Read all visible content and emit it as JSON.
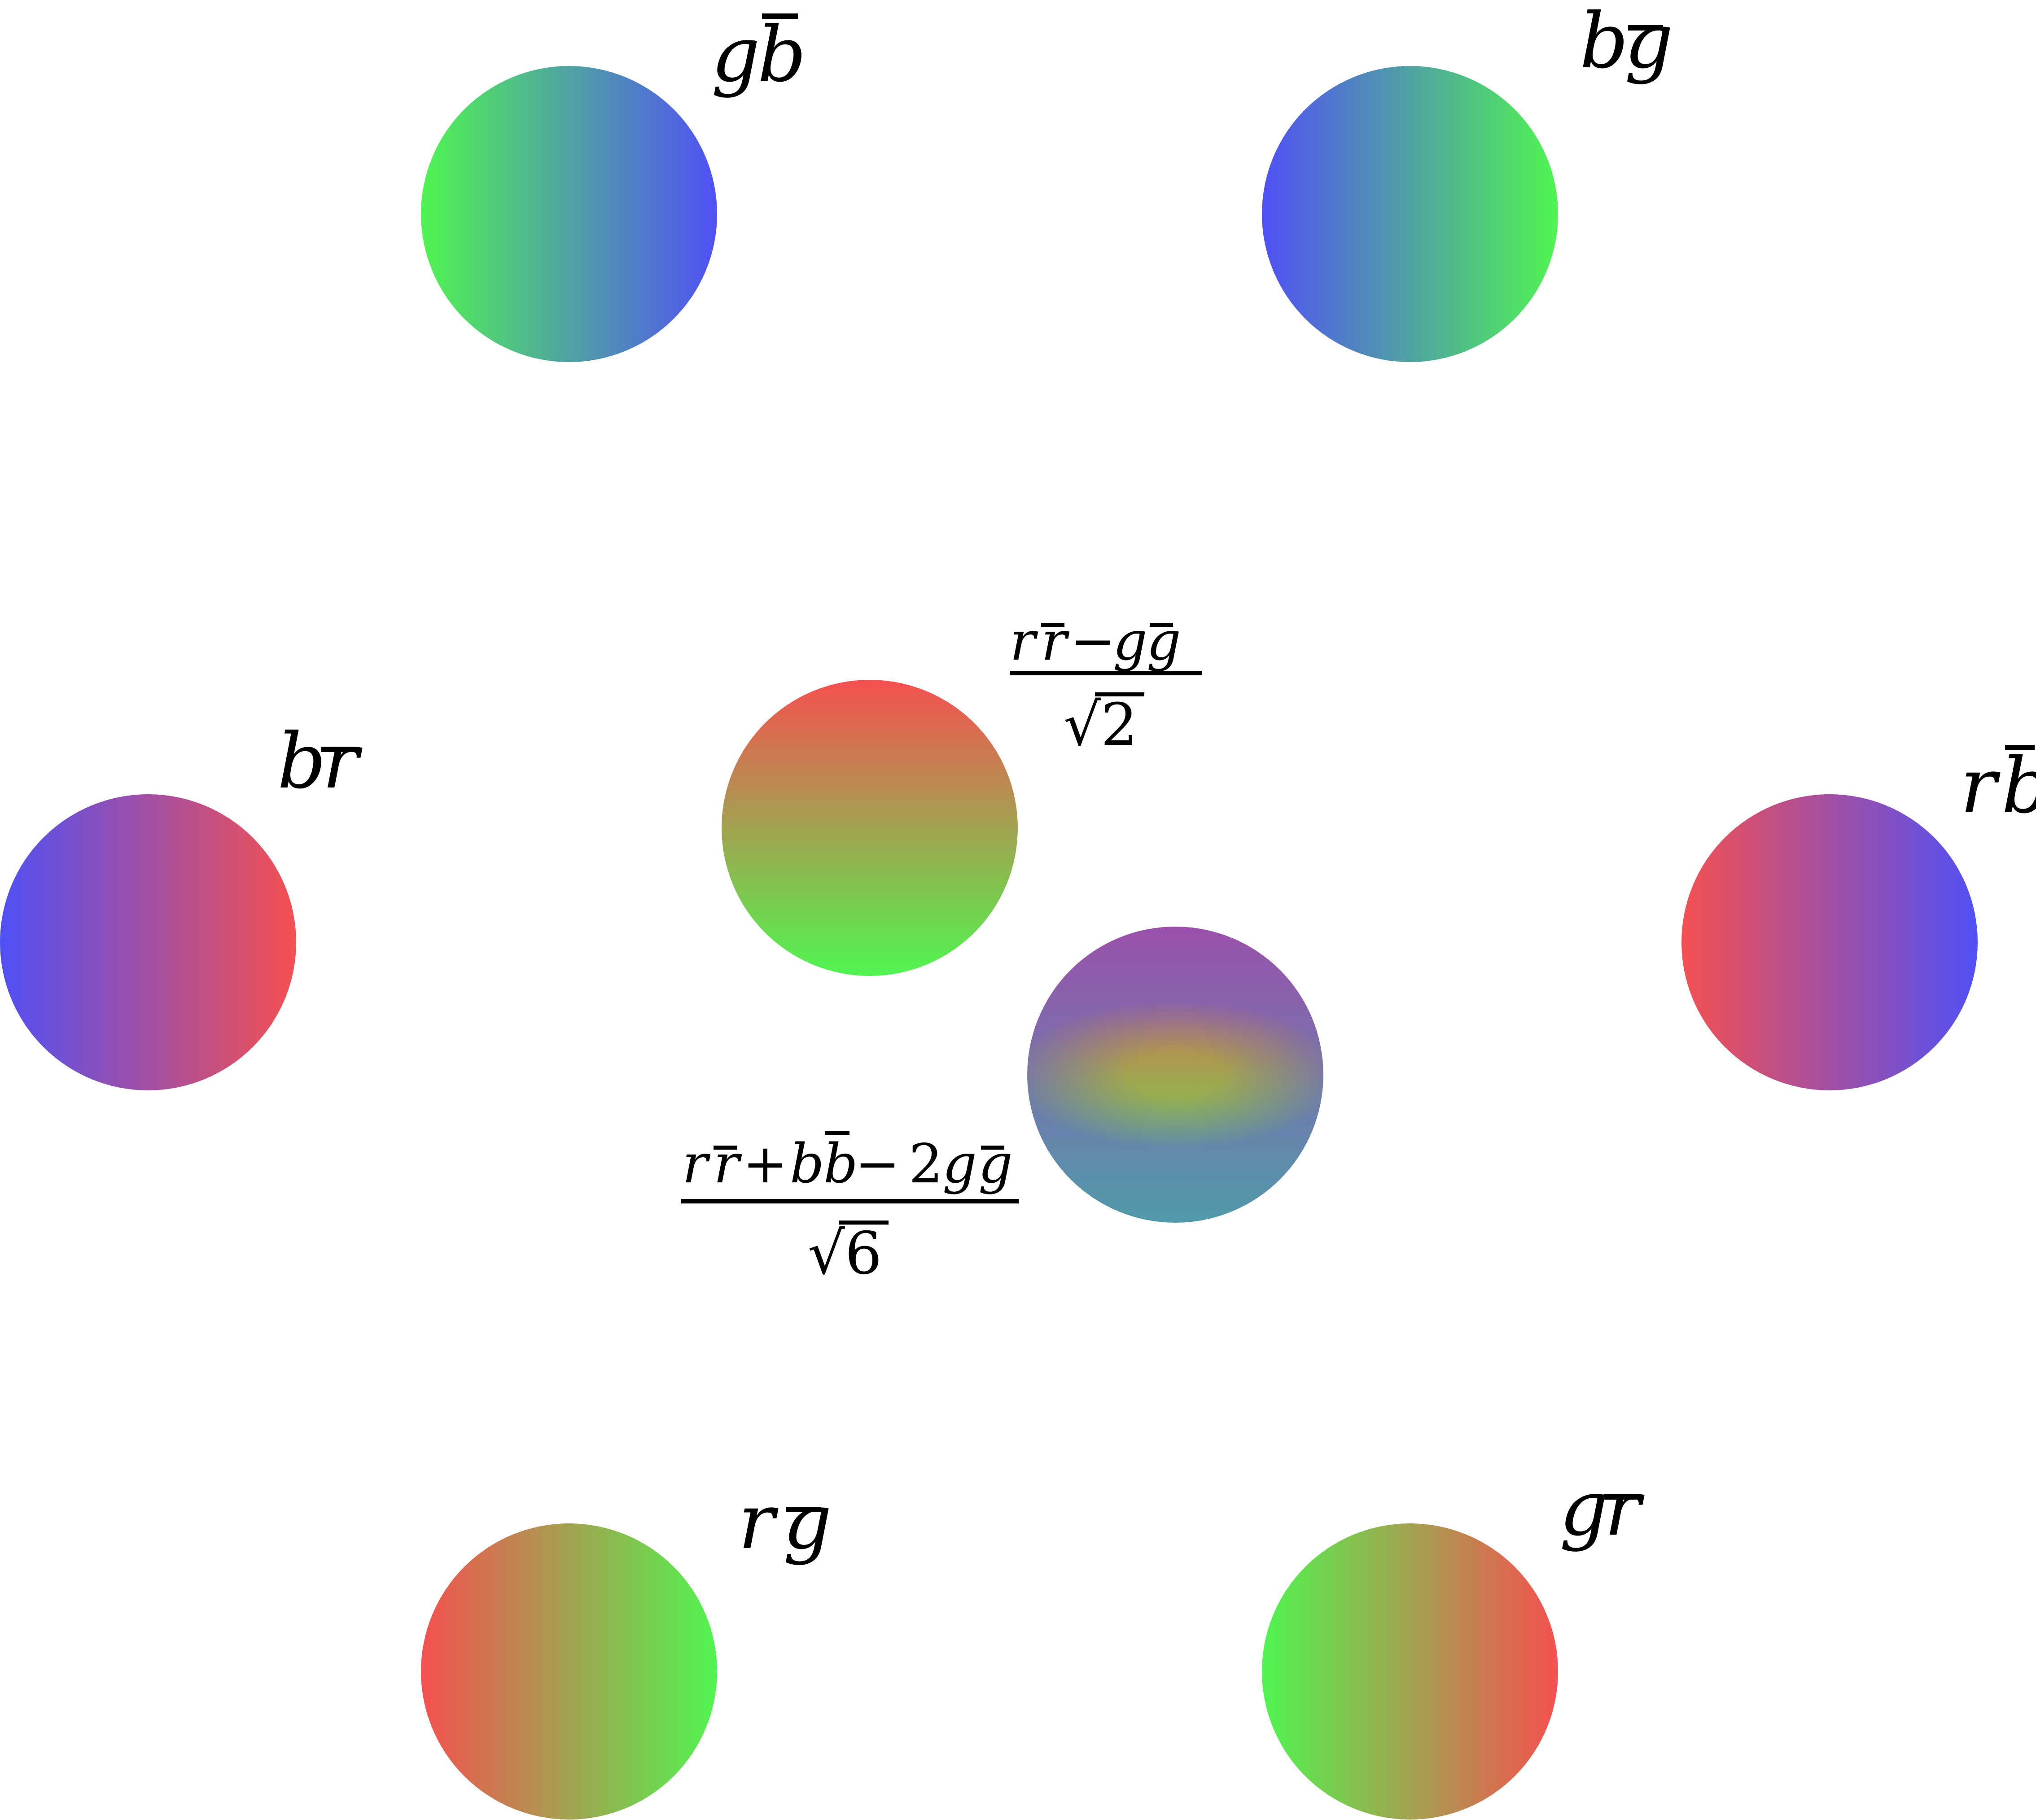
{
  "colors": {
    "red": "#f55050",
    "green": "#50f550",
    "blue": "#5050f5",
    "text": "#000000",
    "background": "#ffffff"
  },
  "states": [
    {
      "id": "gb",
      "mark": "g",
      "anti": "b",
      "gradient": [
        "green",
        "blue"
      ]
    },
    {
      "id": "bg",
      "mark": "b",
      "anti": "g",
      "gradient": [
        "blue",
        "green"
      ]
    },
    {
      "id": "br",
      "mark": "b",
      "anti": "r",
      "gradient": [
        "blue",
        "red"
      ]
    },
    {
      "id": "rb",
      "mark": "r",
      "anti": "b",
      "gradient": [
        "red",
        "blue"
      ]
    },
    {
      "id": "rg",
      "mark": "r",
      "anti": "g",
      "gradient": [
        "red",
        "green"
      ]
    },
    {
      "id": "gr",
      "mark": "g",
      "anti": "r",
      "gradient": [
        "green",
        "red"
      ]
    }
  ],
  "central": {
    "pi": {
      "numerator": {
        "terms": [
          "r",
          "r",
          "−",
          "g",
          "g"
        ]
      },
      "denominator": "√2",
      "gradient": [
        "red",
        "green"
      ]
    },
    "eta": {
      "numerator": {
        "terms": [
          "r",
          "r",
          "+",
          "b",
          "b",
          "−",
          "2",
          "g",
          "g"
        ]
      },
      "denominator": "√6",
      "gradient": [
        "red",
        "green",
        "blue"
      ]
    }
  }
}
